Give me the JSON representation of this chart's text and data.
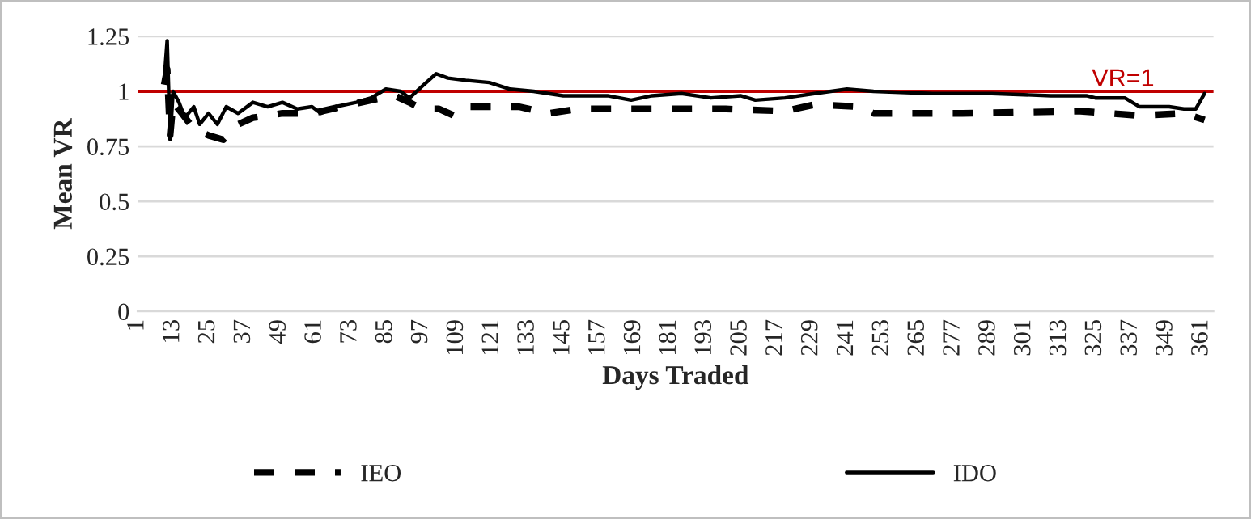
{
  "chart_data": {
    "type": "line",
    "xlabel": "Days Traded",
    "ylabel": "Mean VR",
    "xlim": [
      1,
      365
    ],
    "xticks": [
      1,
      13,
      25,
      37,
      49,
      61,
      73,
      85,
      97,
      109,
      121,
      133,
      145,
      157,
      169,
      181,
      193,
      205,
      217,
      229,
      241,
      253,
      265,
      277,
      289,
      301,
      313,
      325,
      337,
      349,
      361
    ],
    "ylim": [
      0,
      1.25
    ],
    "yticks": [
      0,
      0.25,
      {
        "value": 0.5,
        "label": "0.5"
      },
      0.75,
      {
        "value": 1,
        "label": "1"
      },
      1.25
    ],
    "grid": "y",
    "legend": "bottom",
    "ref_lines": [
      {
        "axis": "y",
        "value": 1,
        "label": "VR=1",
        "color": "#c00000",
        "line_style": "solid"
      }
    ],
    "series": [
      {
        "name": "IEO",
        "color": "#000000",
        "line_style": "dashed",
        "x": [
          10,
          11,
          12,
          13,
          16,
          20,
          25,
          30,
          35,
          40,
          50,
          60,
          70,
          80,
          88,
          93,
          97,
          103,
          108,
          112,
          130,
          140,
          150,
          200,
          220,
          230,
          245,
          250,
          280,
          320,
          340,
          355,
          362
        ],
        "values": [
          1.03,
          1.1,
          0.8,
          0.95,
          0.9,
          0.83,
          0.8,
          0.78,
          0.85,
          0.88,
          0.9,
          0.9,
          0.93,
          0.96,
          0.98,
          0.95,
          0.92,
          0.92,
          0.89,
          0.93,
          0.93,
          0.9,
          0.92,
          0.92,
          0.91,
          0.94,
          0.93,
          0.9,
          0.9,
          0.91,
          0.89,
          0.9,
          0.87
        ]
      },
      {
        "name": "IDO",
        "color": "#000000",
        "line_style": "solid",
        "x": [
          10,
          11,
          12,
          13,
          15,
          17,
          20,
          22,
          25,
          28,
          31,
          35,
          40,
          45,
          50,
          55,
          60,
          63,
          68,
          75,
          80,
          85,
          90,
          93,
          97,
          102,
          106,
          112,
          120,
          127,
          135,
          145,
          160,
          168,
          175,
          185,
          195,
          205,
          210,
          220,
          230,
          241,
          250,
          270,
          290,
          310,
          322,
          325,
          335,
          340,
          350,
          355,
          359,
          362
        ],
        "values": [
          1.05,
          1.23,
          0.78,
          1.0,
          0.95,
          0.88,
          0.93,
          0.85,
          0.9,
          0.85,
          0.93,
          0.9,
          0.95,
          0.93,
          0.95,
          0.92,
          0.93,
          0.9,
          0.93,
          0.95,
          0.97,
          1.01,
          1.0,
          0.97,
          1.02,
          1.08,
          1.06,
          1.05,
          1.04,
          1.01,
          1.0,
          0.98,
          0.98,
          0.96,
          0.98,
          0.99,
          0.97,
          0.98,
          0.96,
          0.97,
          0.99,
          1.01,
          1.0,
          0.99,
          0.99,
          0.98,
          0.98,
          0.97,
          0.97,
          0.93,
          0.93,
          0.92,
          0.92,
          0.99
        ]
      }
    ]
  }
}
